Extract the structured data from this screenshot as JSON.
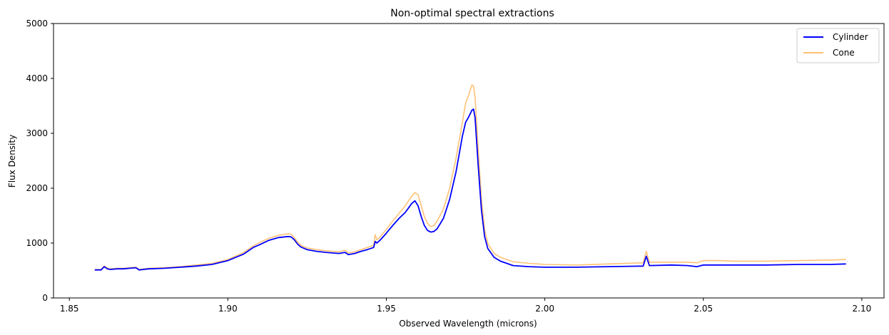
{
  "chart_data": {
    "type": "line",
    "title": "Non-optimal spectral extractions",
    "xlabel": "Observed Wavelength (microns)",
    "ylabel": "Flux Density",
    "xlim": [
      1.845,
      2.107
    ],
    "ylim": [
      0,
      5000
    ],
    "x_ticks": [
      "1.85",
      "1.90",
      "1.95",
      "2.00",
      "2.05",
      "2.10"
    ],
    "y_ticks": [
      "0",
      "1000",
      "2000",
      "3000",
      "4000",
      "5000"
    ],
    "grid": false,
    "legend_position": "top-right",
    "series": [
      {
        "name": "Cylinder",
        "color": "#0000ff",
        "x": [
          1.858,
          1.86,
          1.861,
          1.862,
          1.863,
          1.865,
          1.867,
          1.869,
          1.871,
          1.872,
          1.875,
          1.88,
          1.885,
          1.89,
          1.895,
          1.9,
          1.905,
          1.908,
          1.91,
          1.913,
          1.916,
          1.919,
          1.92,
          1.921,
          1.922,
          1.923,
          1.925,
          1.928,
          1.931,
          1.935,
          1.937,
          1.938,
          1.94,
          1.942,
          1.944,
          1.946,
          1.9465,
          1.947,
          1.948,
          1.95,
          1.952,
          1.954,
          1.956,
          1.957,
          1.958,
          1.959,
          1.96,
          1.961,
          1.962,
          1.963,
          1.964,
          1.965,
          1.966,
          1.968,
          1.97,
          1.972,
          1.974,
          1.975,
          1.976,
          1.977,
          1.9775,
          1.978,
          1.979,
          1.98,
          1.981,
          1.982,
          1.984,
          1.986,
          1.988,
          1.99,
          1.995,
          2.0,
          2.01,
          2.02,
          2.031,
          2.032,
          2.033,
          2.04,
          2.045,
          2.048,
          2.05,
          2.055,
          2.06,
          2.07,
          2.08,
          2.09,
          2.095
        ],
        "values": [
          510,
          510,
          570,
          530,
          520,
          530,
          530,
          540,
          550,
          510,
          530,
          540,
          560,
          580,
          610,
          680,
          800,
          920,
          970,
          1050,
          1100,
          1120,
          1110,
          1060,
          980,
          930,
          880,
          850,
          830,
          810,
          830,
          790,
          810,
          850,
          880,
          920,
          1030,
          1000,
          1050,
          1180,
          1320,
          1450,
          1560,
          1640,
          1720,
          1770,
          1680,
          1480,
          1320,
          1230,
          1200,
          1210,
          1260,
          1450,
          1800,
          2300,
          2950,
          3200,
          3300,
          3420,
          3440,
          3280,
          2400,
          1600,
          1120,
          900,
          740,
          670,
          630,
          590,
          570,
          560,
          560,
          570,
          580,
          760,
          590,
          600,
          590,
          570,
          600,
          600,
          600,
          600,
          610,
          610,
          620
        ]
      },
      {
        "name": "Cone",
        "color": "#ffbe6f",
        "x": [
          1.858,
          1.86,
          1.861,
          1.862,
          1.863,
          1.865,
          1.867,
          1.869,
          1.871,
          1.872,
          1.875,
          1.88,
          1.885,
          1.89,
          1.895,
          1.9,
          1.905,
          1.908,
          1.91,
          1.913,
          1.916,
          1.919,
          1.92,
          1.921,
          1.922,
          1.923,
          1.925,
          1.928,
          1.931,
          1.935,
          1.937,
          1.938,
          1.94,
          1.942,
          1.944,
          1.946,
          1.9465,
          1.947,
          1.948,
          1.95,
          1.952,
          1.954,
          1.956,
          1.957,
          1.958,
          1.959,
          1.96,
          1.961,
          1.962,
          1.963,
          1.964,
          1.965,
          1.966,
          1.968,
          1.97,
          1.972,
          1.974,
          1.975,
          1.976,
          1.977,
          1.9775,
          1.978,
          1.979,
          1.98,
          1.981,
          1.982,
          1.984,
          1.986,
          1.988,
          1.99,
          1.995,
          2.0,
          2.01,
          2.02,
          2.031,
          2.032,
          2.033,
          2.04,
          2.045,
          2.048,
          2.05,
          2.055,
          2.06,
          2.07,
          2.08,
          2.09,
          2.095
        ],
        "values": [
          520,
          520,
          580,
          540,
          530,
          540,
          540,
          550,
          560,
          520,
          540,
          550,
          570,
          600,
          630,
          700,
          830,
          950,
          1010,
          1090,
          1140,
          1170,
          1160,
          1100,
          1020,
          960,
          910,
          880,
          860,
          840,
          870,
          820,
          840,
          880,
          920,
          960,
          1150,
          1060,
          1110,
          1250,
          1400,
          1540,
          1680,
          1770,
          1850,
          1920,
          1880,
          1680,
          1480,
          1360,
          1300,
          1320,
          1400,
          1620,
          2000,
          2550,
          3200,
          3550,
          3700,
          3880,
          3860,
          3650,
          2700,
          1800,
          1250,
          990,
          810,
          740,
          700,
          660,
          630,
          610,
          600,
          620,
          640,
          850,
          650,
          650,
          650,
          640,
          680,
          680,
          670,
          670,
          680,
          690,
          700
        ]
      }
    ]
  }
}
